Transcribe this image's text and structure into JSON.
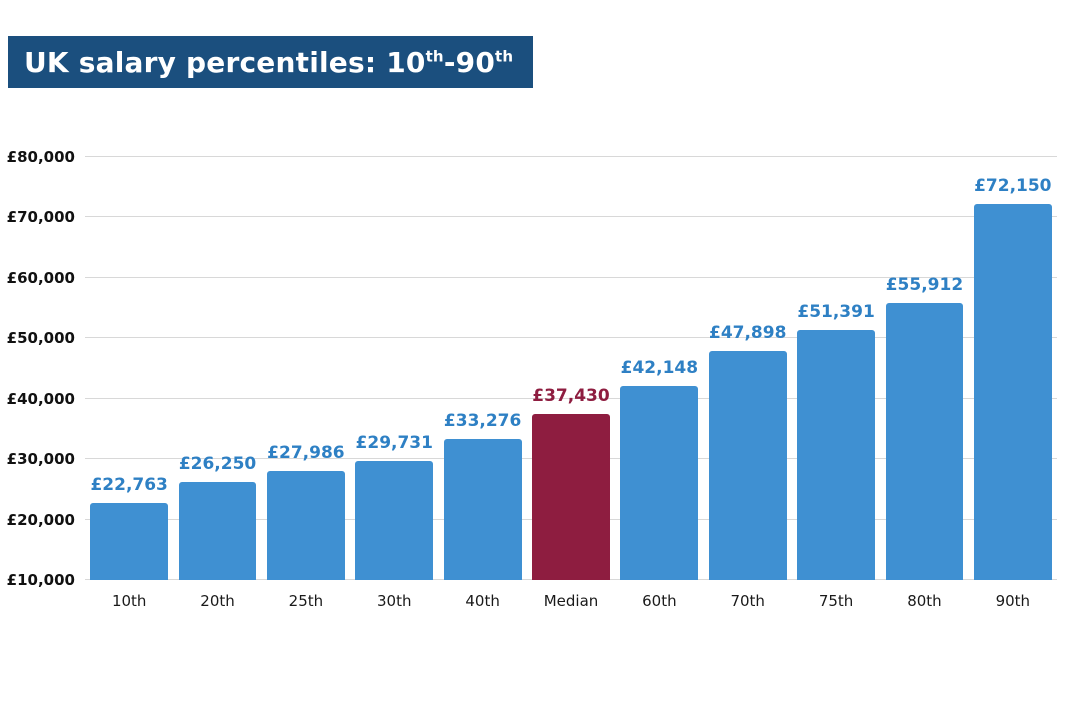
{
  "title": {
    "prefix": "UK salary percentiles: 10",
    "sup1": "th",
    "mid": "-90",
    "sup2": "th",
    "banner_color": "#1b4f7e"
  },
  "chart_data": {
    "type": "bar",
    "title": "UK salary percentiles: 10th-90th",
    "categories": [
      "10th",
      "20th",
      "25th",
      "30th",
      "40th",
      "Median",
      "60th",
      "70th",
      "75th",
      "80th",
      "90th"
    ],
    "values": [
      22763,
      26250,
      27986,
      29731,
      33276,
      37430,
      42148,
      47898,
      51391,
      55912,
      72150
    ],
    "value_labels": [
      "£22,763",
      "£26,250",
      "£27,986",
      "£29,731",
      "£33,276",
      "£37,430",
      "£42,148",
      "£47,898",
      "£51,391",
      "£55,912",
      "£72,150"
    ],
    "highlight_index": 5,
    "bar_color": "#3f90d2",
    "highlight_color": "#8e1d40",
    "label_color": "#2e80c4",
    "highlight_label_color": "#8e1d40",
    "ylim": [
      10000,
      80000
    ],
    "ytick_step": 10000,
    "ytick_labels": [
      "£10,000",
      "£20,000",
      "£30,000",
      "£40,000",
      "£50,000",
      "£60,000",
      "£70,000",
      "£80,000"
    ],
    "grid": true,
    "legend": "none",
    "xlabel": "",
    "ylabel": ""
  }
}
